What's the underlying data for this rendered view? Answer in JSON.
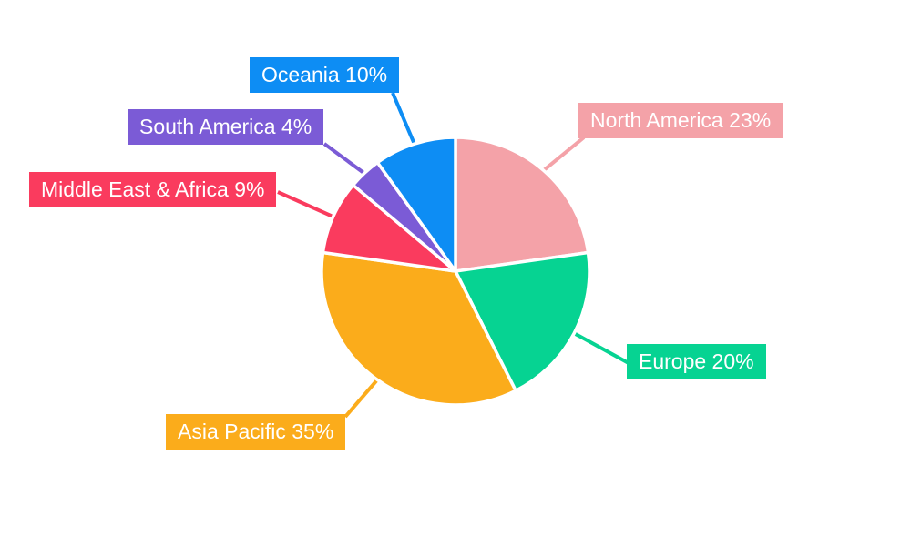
{
  "chart_data": {
    "type": "pie",
    "title": "",
    "legend": "none",
    "background_color": "#ffffff",
    "label_text_color": "#ffffff",
    "slice_gap_color": "#ffffff",
    "start_angle": "12 o'clock",
    "direction": "clockwise",
    "slices": [
      {
        "label": "North America",
        "value": 23,
        "unit": "%",
        "color": "#F4A2A8",
        "text": "North America 23%"
      },
      {
        "label": "Europe",
        "value": 20,
        "unit": "%",
        "color": "#06D392",
        "text": "Europe 20%"
      },
      {
        "label": "Asia Pacific",
        "value": 35,
        "unit": "%",
        "color": "#FBAC1B",
        "text": "Asia Pacific 35%"
      },
      {
        "label": "Middle East & Africa",
        "value": 9,
        "unit": "%",
        "color": "#FA3B5E",
        "text": "Middle East & Africa 9%"
      },
      {
        "label": "South America",
        "value": 4,
        "unit": "%",
        "color": "#7B5BD6",
        "text": "South America 4%"
      },
      {
        "label": "Oceania",
        "value": 10,
        "unit": "%",
        "color": "#0D8DF4",
        "text": "Oceania 10%"
      }
    ]
  }
}
